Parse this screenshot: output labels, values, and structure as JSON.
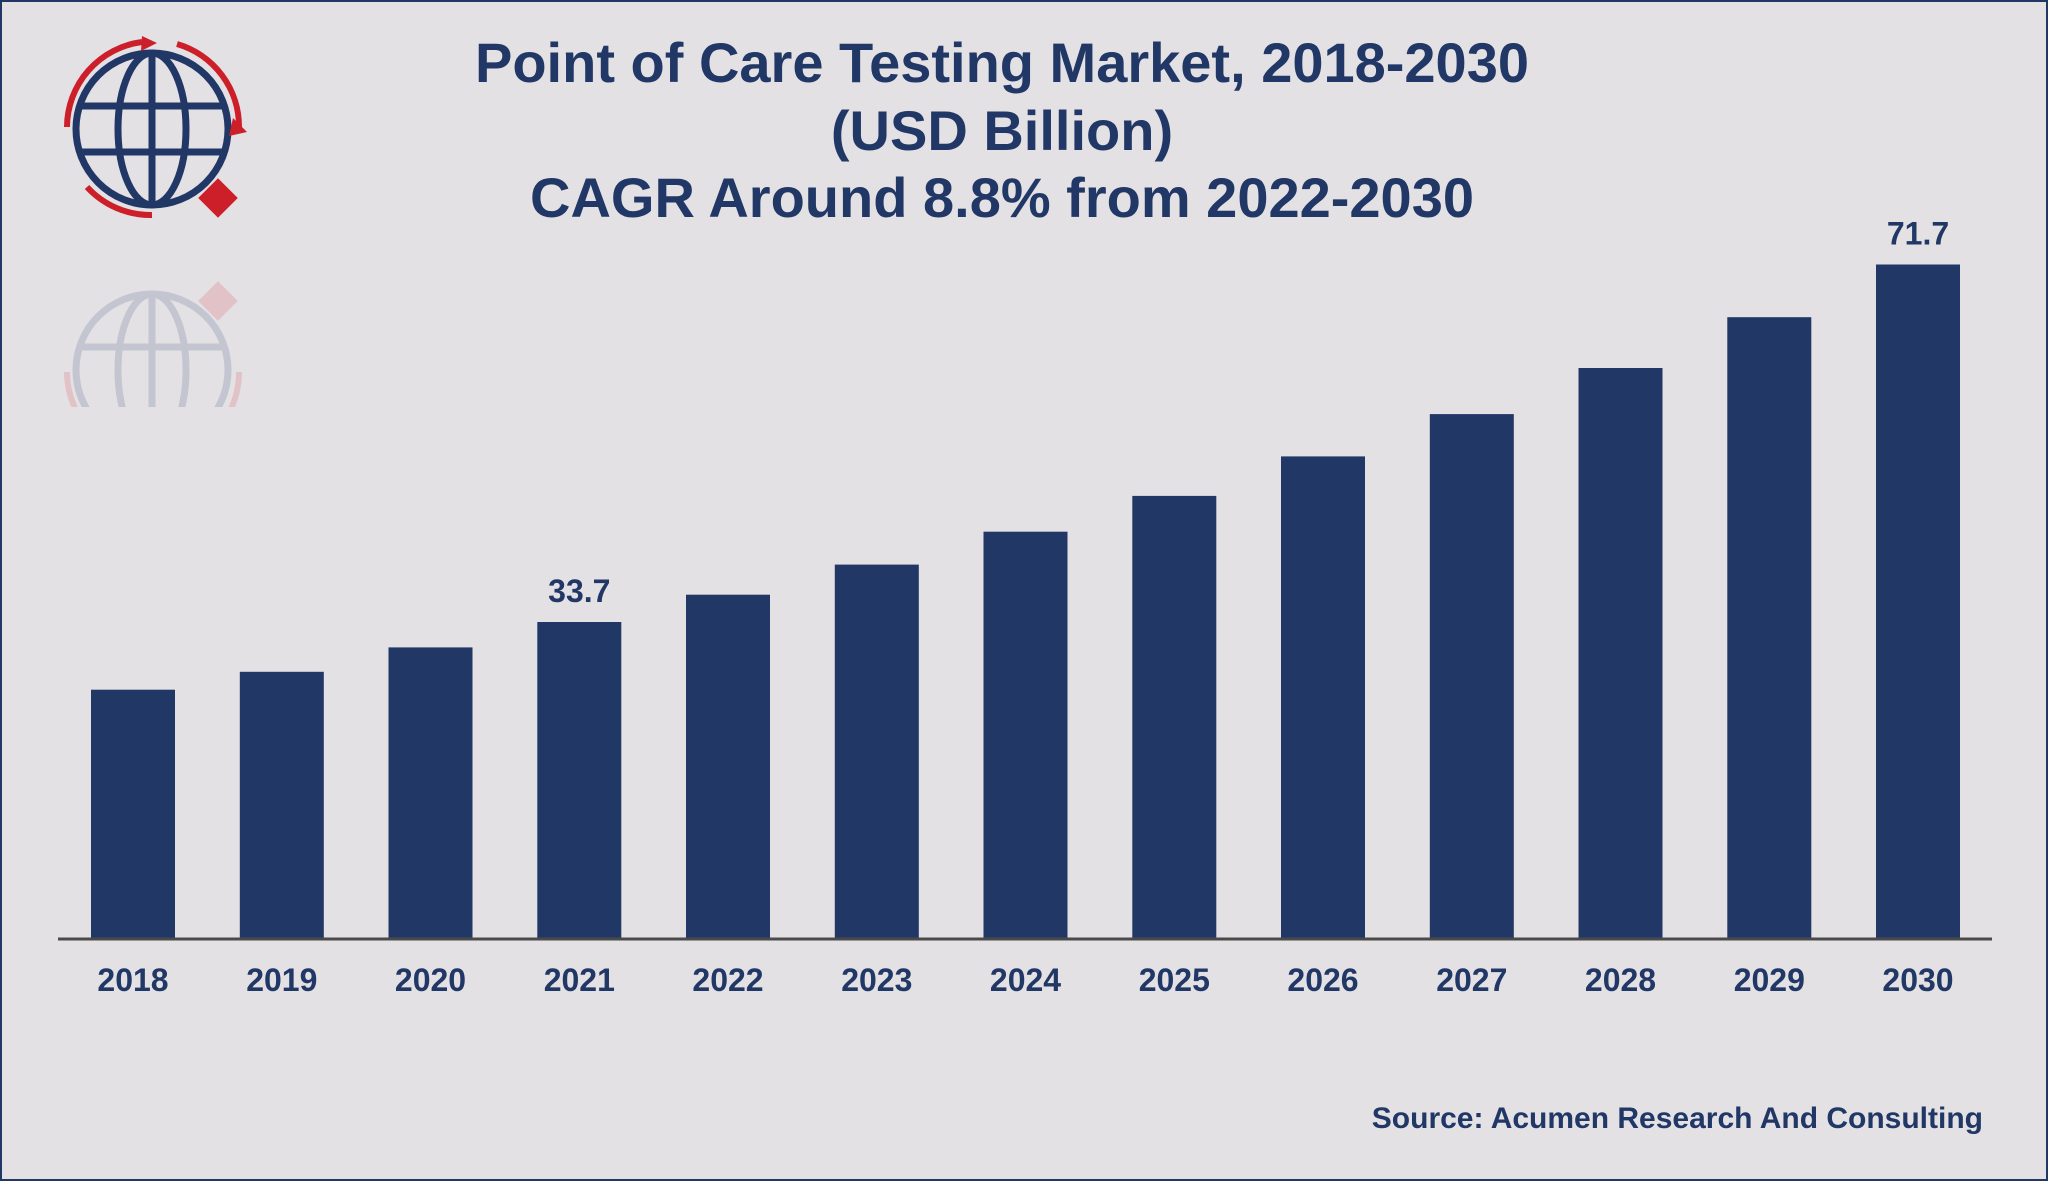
{
  "chart_data": {
    "type": "bar",
    "title_lines": [
      "Point of Care Testing Market, 2018-2030",
      "(USD Billion)",
      "CAGR Around 8.8% from 2022-2030"
    ],
    "categories": [
      "2018",
      "2019",
      "2020",
      "2021",
      "2022",
      "2023",
      "2024",
      "2025",
      "2026",
      "2027",
      "2028",
      "2029",
      "2030"
    ],
    "values": [
      26.5,
      28.4,
      31.0,
      33.7,
      36.6,
      39.8,
      43.3,
      47.1,
      51.3,
      55.8,
      60.7,
      66.1,
      71.7
    ],
    "data_labels": [
      {
        "index": 3,
        "text": "33.7"
      },
      {
        "index": 12,
        "text": "71.7"
      }
    ],
    "ylim": [
      0,
      72.5
    ],
    "xlabel": "",
    "ylabel": "",
    "grid": false,
    "legend": "none",
    "colors": {
      "bar": "#213766",
      "axis": "#4a4a4a",
      "text": "#213766",
      "background": "#e3e1e4"
    }
  },
  "source": "Source: Acumen Research And Consulting",
  "logo": {
    "icon": "globe-logo-icon",
    "colors": {
      "globe": "#213766",
      "arrows": "#cc1f2a"
    }
  }
}
